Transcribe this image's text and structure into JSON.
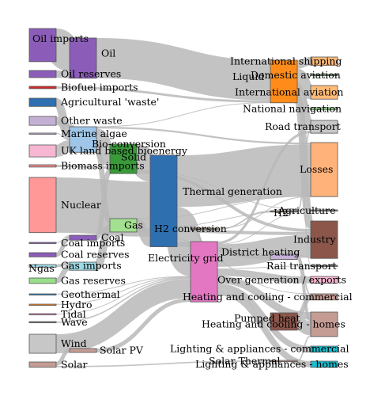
{
  "chart_data": {
    "type": "sankey",
    "colors": {
      "link": "#b9b9b9",
      "node_stroke": "#555555"
    },
    "nodes": [
      {
        "id": "agri_waste",
        "label": "Agricultural 'waste'",
        "color": "#2e6fb0"
      },
      {
        "id": "bio_conversion",
        "label": "Bio-conversion",
        "color": "#9fc6e8"
      },
      {
        "id": "liquid",
        "label": "Liquid",
        "color": "#ff8c1a"
      },
      {
        "id": "losses",
        "label": "Losses",
        "color": "#ffb27a"
      },
      {
        "id": "solid",
        "label": "Solid",
        "color": "#3a9a3a"
      },
      {
        "id": "gas",
        "label": "Gas",
        "color": "#a3e08f"
      },
      {
        "id": "biofuel_imports",
        "label": "Biofuel imports",
        "color": "#d62728"
      },
      {
        "id": "biomass_imports",
        "label": "Biomass imports",
        "color": "#f08a8a"
      },
      {
        "id": "coal_imports",
        "label": "Coal imports",
        "color": "#8b5db8"
      },
      {
        "id": "coal",
        "label": "Coal",
        "color": "#8b5db8"
      },
      {
        "id": "coal_reserves",
        "label": "Coal reserves",
        "color": "#8b5db8"
      },
      {
        "id": "district_heating",
        "label": "District heating",
        "color": "#c5b0d5"
      },
      {
        "id": "industry",
        "label": "Industry",
        "color": "#8c564b"
      },
      {
        "id": "heat_commercial",
        "label": "Heating and cooling - commercial",
        "color": "#c49c94"
      },
      {
        "id": "heat_homes",
        "label": "Heating and cooling - homes",
        "color": "#c49c94"
      },
      {
        "id": "electricity_grid",
        "label": "Electricity grid",
        "color": "#e377c2"
      },
      {
        "id": "over_generation",
        "label": "Over generation / exports",
        "color": "#f7b6d2"
      },
      {
        "id": "h2_conversion",
        "label": "H2 conversion",
        "color": "#8a7a6a"
      },
      {
        "id": "road_transport",
        "label": "Road transport",
        "color": "#c7c7c7"
      },
      {
        "id": "agriculture",
        "label": "Agriculture",
        "color": "#7f7f7f"
      },
      {
        "id": "rail_transport",
        "label": "Rail transport",
        "color": "#7f7f7f"
      },
      {
        "id": "lighting_commercial",
        "label": "Lighting & appliances - commercial",
        "color": "#17becf"
      },
      {
        "id": "lighting_homes",
        "label": "Lighting & appliances - homes",
        "color": "#17becf"
      },
      {
        "id": "gas_imports",
        "label": "Gas imports",
        "color": "#9edae5"
      },
      {
        "id": "ngas",
        "label": "Ngas",
        "color": "#9edae5"
      },
      {
        "id": "gas_reserves",
        "label": "Gas reserves",
        "color": "#98df8a"
      },
      {
        "id": "thermal_generation",
        "label": "Thermal generation",
        "color": "#2e6fb0"
      },
      {
        "id": "geothermal",
        "label": "Geothermal",
        "color": "#1f77b4"
      },
      {
        "id": "h2",
        "label": "H2",
        "color": "#8a7a6a"
      },
      {
        "id": "hydro",
        "label": "Hydro",
        "color": "#ff7f0e"
      },
      {
        "id": "international_shipping",
        "label": "International shipping",
        "color": "#ffbb78"
      },
      {
        "id": "domestic_aviation",
        "label": "Domestic aviation",
        "color": "#2a5a2a"
      },
      {
        "id": "international_aviation",
        "label": "International aviation",
        "color": "#ffbb78"
      },
      {
        "id": "national_navigation",
        "label": "National navigation",
        "color": "#98df8a"
      },
      {
        "id": "marine_algae",
        "label": "Marine algae",
        "color": "#c5b0d5"
      },
      {
        "id": "nuclear",
        "label": "Nuclear",
        "color": "#ff9896"
      },
      {
        "id": "oil_imports",
        "label": "Oil imports",
        "color": "#8b5db8"
      },
      {
        "id": "oil",
        "label": "Oil",
        "color": "#8b5db8"
      },
      {
        "id": "oil_reserves",
        "label": "Oil reserves",
        "color": "#8b5db8"
      },
      {
        "id": "other_waste",
        "label": "Other waste",
        "color": "#c5b0d5"
      },
      {
        "id": "pumped_heat",
        "label": "Pumped heat",
        "color": "#8c564b"
      },
      {
        "id": "solar_pv",
        "label": "Solar PV",
        "color": "#c49c94"
      },
      {
        "id": "solar_thermal",
        "label": "Solar Thermal",
        "color": "#c49c94"
      },
      {
        "id": "solar",
        "label": "Solar",
        "color": "#c49c94"
      },
      {
        "id": "tidal",
        "label": "Tidal",
        "color": "#e377c2"
      },
      {
        "id": "uk_land_bioenergy",
        "label": "UK land based bioenergy",
        "color": "#f7b6d2"
      },
      {
        "id": "wave",
        "label": "Wave",
        "color": "#7f7f7f"
      },
      {
        "id": "wind",
        "label": "Wind",
        "color": "#c7c7c7"
      }
    ],
    "links": [
      {
        "source": "agri_waste",
        "target": "bio_conversion",
        "value": 124.7
      },
      {
        "source": "bio_conversion",
        "target": "liquid",
        "value": 0.6
      },
      {
        "source": "bio_conversion",
        "target": "losses",
        "value": 26.9
      },
      {
        "source": "bio_conversion",
        "target": "solid",
        "value": 280.3
      },
      {
        "source": "bio_conversion",
        "target": "gas",
        "value": 81.1
      },
      {
        "source": "biofuel_imports",
        "target": "liquid",
        "value": 35
      },
      {
        "source": "biomass_imports",
        "target": "solid",
        "value": 35
      },
      {
        "source": "coal_imports",
        "target": "coal",
        "value": 11.6
      },
      {
        "source": "coal_reserves",
        "target": "coal",
        "value": 63.9
      },
      {
        "source": "coal",
        "target": "solid",
        "value": 75.6
      },
      {
        "source": "district_heating",
        "target": "industry",
        "value": 10.6
      },
      {
        "source": "district_heating",
        "target": "heat_commercial",
        "value": 22.5
      },
      {
        "source": "district_heating",
        "target": "heat_homes",
        "value": 46.2
      },
      {
        "source": "electricity_grid",
        "target": "over_generation",
        "value": 104.5
      },
      {
        "source": "electricity_grid",
        "target": "heat_homes",
        "value": 113.7
      },
      {
        "source": "electricity_grid",
        "target": "h2_conversion",
        "value": 27.1
      },
      {
        "source": "electricity_grid",
        "target": "industry",
        "value": 342.2
      },
      {
        "source": "electricity_grid",
        "target": "road_transport",
        "value": 37.8
      },
      {
        "source": "electricity_grid",
        "target": "agriculture",
        "value": 4.4
      },
      {
        "source": "electricity_grid",
        "target": "rail_transport",
        "value": 7.0
      },
      {
        "source": "electricity_grid",
        "target": "lighting_commercial",
        "value": 90.0
      },
      {
        "source": "electricity_grid",
        "target": "lighting_homes",
        "value": 93.5
      },
      {
        "source": "gas_imports",
        "target": "ngas",
        "value": 40.7
      },
      {
        "source": "gas_reserves",
        "target": "ngas",
        "value": 82.2
      },
      {
        "source": "gas",
        "target": "heat_commercial",
        "value": 0.1
      },
      {
        "source": "gas",
        "target": "losses",
        "value": 1.4
      },
      {
        "source": "gas",
        "target": "thermal_generation",
        "value": 151.9
      },
      {
        "source": "gas",
        "target": "agriculture",
        "value": 2.1
      },
      {
        "source": "gas",
        "target": "industry",
        "value": 48.6
      },
      {
        "source": "geothermal",
        "target": "electricity_grid",
        "value": 7.0
      },
      {
        "source": "h2_conversion",
        "target": "h2",
        "value": 20.9
      },
      {
        "source": "h2_conversion",
        "target": "losses",
        "value": 6.2
      },
      {
        "source": "h2",
        "target": "road_transport",
        "value": 20.9
      },
      {
        "source": "hydro",
        "target": "electricity_grid",
        "value": 6.9
      },
      {
        "source": "liquid",
        "target": "industry",
        "value": 121.1
      },
      {
        "source": "liquid",
        "target": "international_shipping",
        "value": 128.7
      },
      {
        "source": "liquid",
        "target": "road_transport",
        "value": 135.8
      },
      {
        "source": "liquid",
        "target": "domestic_aviation",
        "value": 14.5
      },
      {
        "source": "liquid",
        "target": "international_aviation",
        "value": 206.9
      },
      {
        "source": "liquid",
        "target": "agriculture",
        "value": 3.6
      },
      {
        "source": "liquid",
        "target": "national_navigation",
        "value": 33.2
      },
      {
        "source": "liquid",
        "target": "rail_transport",
        "value": 4.4
      },
      {
        "source": "marine_algae",
        "target": "bio_conversion",
        "value": 4.4
      },
      {
        "source": "ngas",
        "target": "gas",
        "value": 122.9
      },
      {
        "source": "nuclear",
        "target": "thermal_generation",
        "value": 839.9
      },
      {
        "source": "oil_imports",
        "target": "oil",
        "value": 504.3
      },
      {
        "source": "oil_reserves",
        "target": "oil",
        "value": 107.7
      },
      {
        "source": "oil",
        "target": "liquid",
        "value": 611.1
      },
      {
        "source": "other_waste",
        "target": "solid",
        "value": 56.6
      },
      {
        "source": "other_waste",
        "target": "bio_conversion",
        "value": 77.8
      },
      {
        "source": "pumped_heat",
        "target": "heat_homes",
        "value": 193.0
      },
      {
        "source": "pumped_heat",
        "target": "heat_commercial",
        "value": 70.7
      },
      {
        "source": "solar_pv",
        "target": "electricity_grid",
        "value": 59.9
      },
      {
        "source": "solar_thermal",
        "target": "heat_homes",
        "value": 19.3
      },
      {
        "source": "solar",
        "target": "solar_thermal",
        "value": 19.3
      },
      {
        "source": "solar",
        "target": "solar_pv",
        "value": 59.9
      },
      {
        "source": "solid",
        "target": "agriculture",
        "value": 0.8
      },
      {
        "source": "solid",
        "target": "thermal_generation",
        "value": 400.1
      },
      {
        "source": "solid",
        "target": "industry",
        "value": 46.5
      },
      {
        "source": "thermal_generation",
        "target": "electricity_grid",
        "value": 525.5
      },
      {
        "source": "thermal_generation",
        "target": "losses",
        "value": 787.1
      },
      {
        "source": "thermal_generation",
        "target": "district_heating",
        "value": 79.3
      },
      {
        "source": "tidal",
        "target": "electricity_grid",
        "value": 9.5
      },
      {
        "source": "uk_land_bioenergy",
        "target": "bio_conversion",
        "value": 182.0
      },
      {
        "source": "wave",
        "target": "electricity_grid",
        "value": 19.0
      },
      {
        "source": "wind",
        "target": "electricity_grid",
        "value": 289.4
      }
    ]
  }
}
